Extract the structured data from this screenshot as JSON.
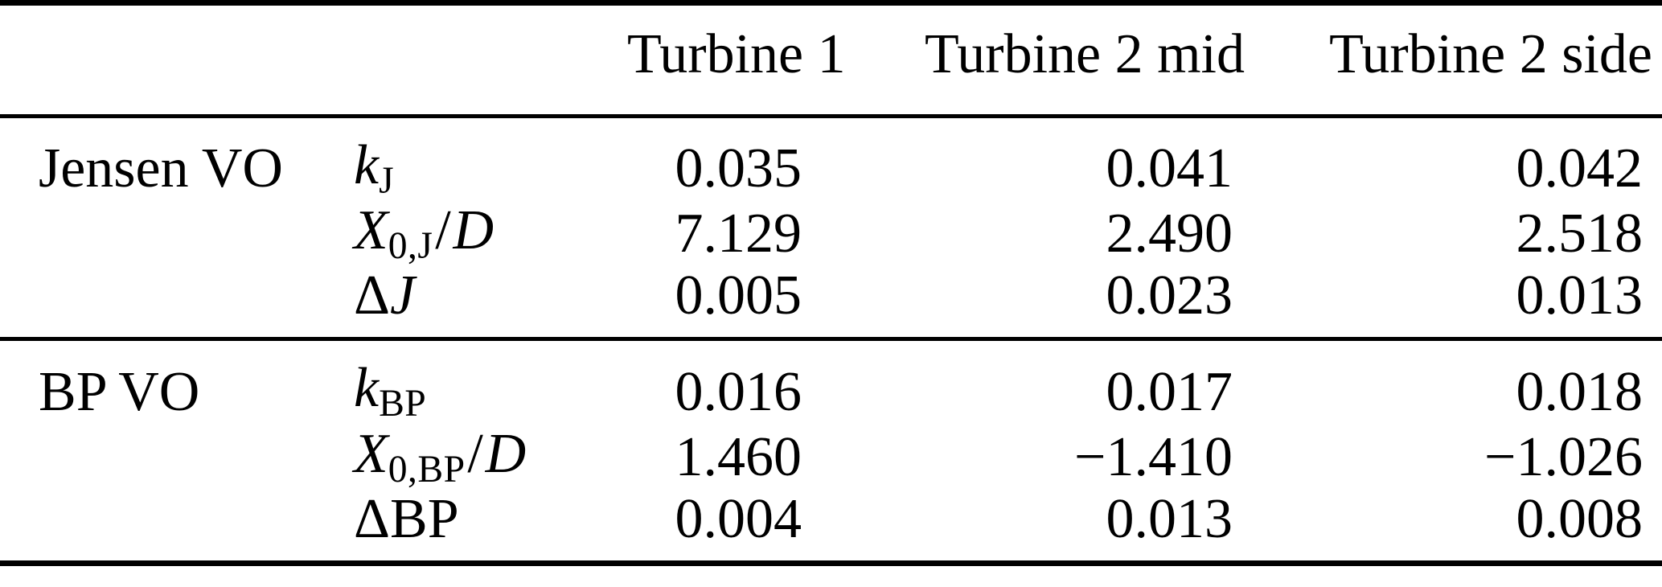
{
  "table": {
    "columns": [
      "",
      "",
      "Turbine 1",
      "Turbine 2 mid",
      "Turbine 2 side"
    ],
    "groups": [
      {
        "label": "Jensen VO",
        "rows": [
          {
            "param": [
              {
                "t": "k",
                "s": "it"
              },
              {
                "t": "J",
                "s": "sub"
              }
            ],
            "values": [
              "0.035",
              "0.041",
              "0.042"
            ]
          },
          {
            "param": [
              {
                "t": "X",
                "s": "it"
              },
              {
                "t": "0,J",
                "s": "sub"
              },
              {
                "t": "/",
                "s": "up"
              },
              {
                "t": "D",
                "s": "it"
              }
            ],
            "values": [
              "7.129",
              "2.490",
              "2.518"
            ]
          },
          {
            "param": [
              {
                "t": "Δ",
                "s": "up"
              },
              {
                "t": "J",
                "s": "it"
              }
            ],
            "values": [
              "0.005",
              "0.023",
              "0.013"
            ]
          }
        ]
      },
      {
        "label": "BP VO",
        "rows": [
          {
            "param": [
              {
                "t": "k",
                "s": "it"
              },
              {
                "t": "BP",
                "s": "sub"
              }
            ],
            "values": [
              "0.016",
              "0.017",
              "0.018"
            ]
          },
          {
            "param": [
              {
                "t": "X",
                "s": "it"
              },
              {
                "t": "0,BP",
                "s": "sub"
              },
              {
                "t": "/",
                "s": "up"
              },
              {
                "t": "D",
                "s": "it"
              }
            ],
            "values": [
              "1.460",
              "−1.410",
              "−1.026"
            ]
          },
          {
            "param": [
              {
                "t": "Δ",
                "s": "up"
              },
              {
                "t": "BP",
                "s": "up"
              }
            ],
            "values": [
              "0.004",
              "0.013",
              "0.008"
            ]
          }
        ]
      }
    ],
    "colors": {
      "text": "#000000",
      "rule": "#000000",
      "background": "#ffffff"
    }
  }
}
